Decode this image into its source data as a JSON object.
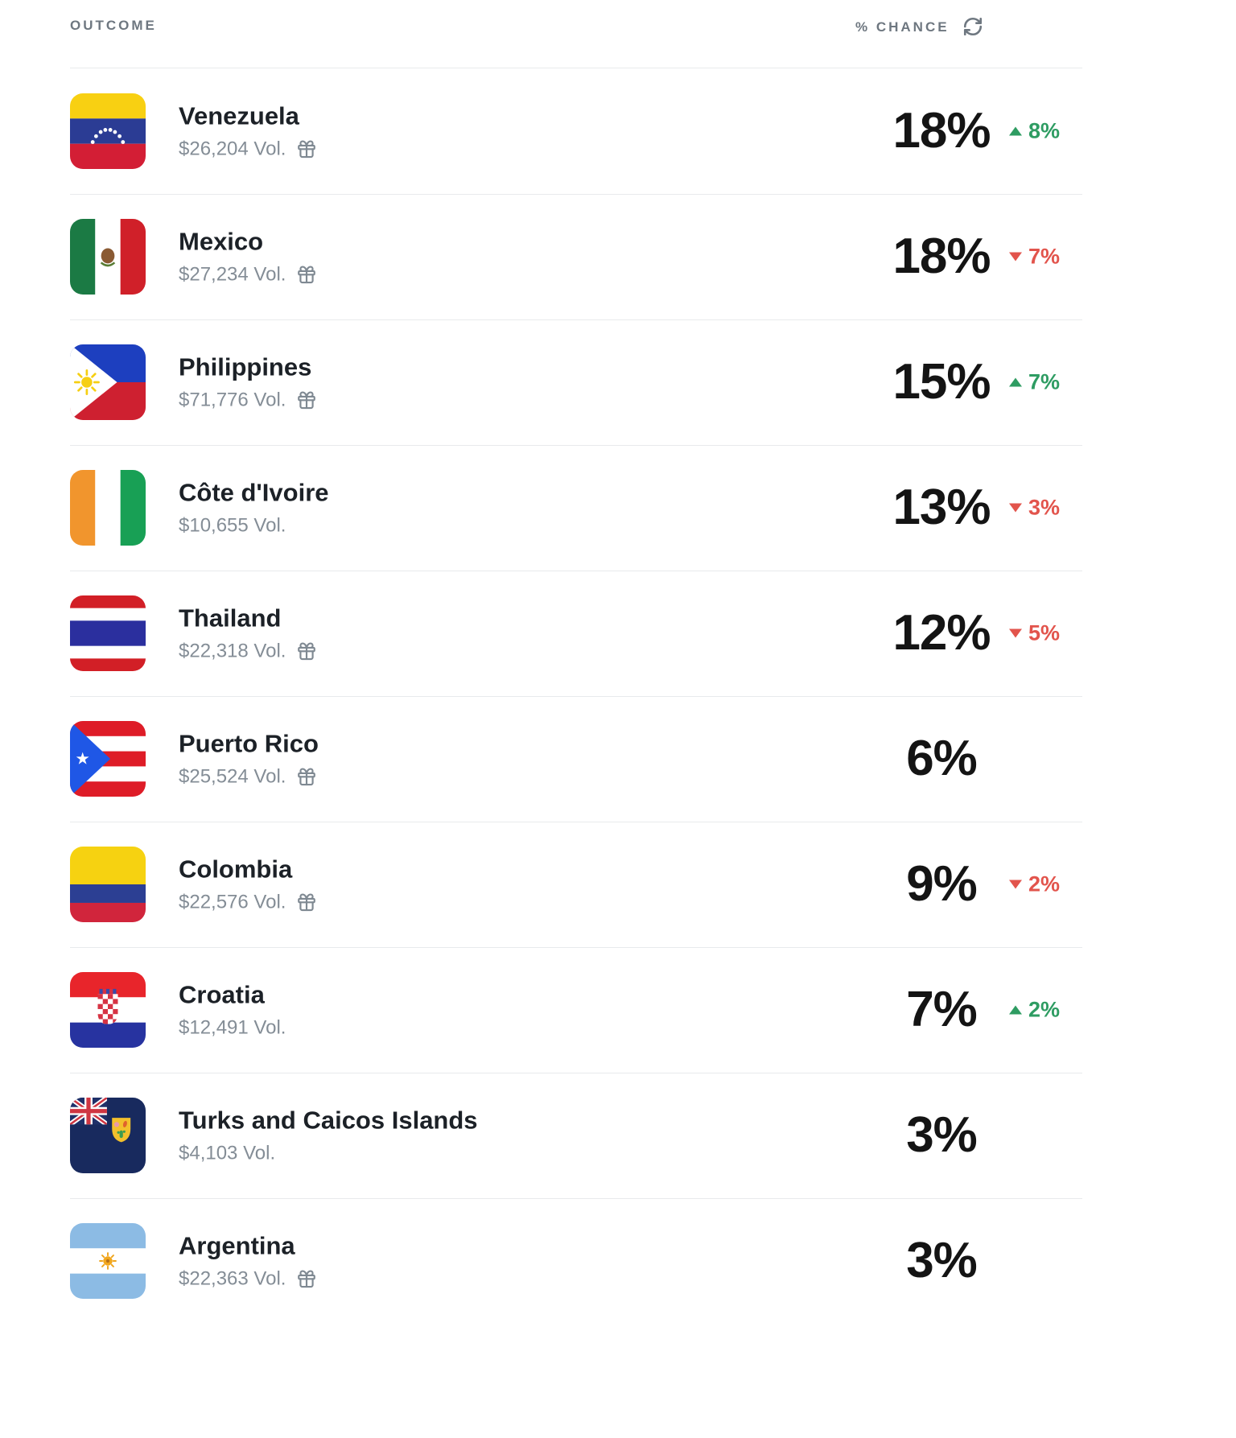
{
  "header": {
    "outcome_label": "OUTCOME",
    "chance_label": "% CHANCE"
  },
  "colors": {
    "up_green": "#2e9c62",
    "down_red": "#e2544c",
    "text_dark": "#1c2127",
    "text_muted": "#848d96",
    "header_gray": "#6e7780",
    "divider": "#e8eaec"
  },
  "outcomes": [
    {
      "name": "Venezuela",
      "volume": "$26,204 Vol.",
      "has_gift": true,
      "flag_icon": "venezuela-flag-icon",
      "chance": "18%",
      "delta": {
        "direction": "up",
        "value": "8%"
      }
    },
    {
      "name": "Mexico",
      "volume": "$27,234 Vol.",
      "has_gift": true,
      "flag_icon": "mexico-flag-icon",
      "chance": "18%",
      "delta": {
        "direction": "down",
        "value": "7%"
      }
    },
    {
      "name": "Philippines",
      "volume": "$71,776 Vol.",
      "has_gift": true,
      "flag_icon": "philippines-flag-icon",
      "chance": "15%",
      "delta": {
        "direction": "up",
        "value": "7%"
      }
    },
    {
      "name": "Côte d'Ivoire",
      "volume": "$10,655 Vol.",
      "has_gift": false,
      "flag_icon": "cote-divoire-flag-icon",
      "chance": "13%",
      "delta": {
        "direction": "down",
        "value": "3%"
      }
    },
    {
      "name": "Thailand",
      "volume": "$22,318 Vol.",
      "has_gift": true,
      "flag_icon": "thailand-flag-icon",
      "chance": "12%",
      "delta": {
        "direction": "down",
        "value": "5%"
      }
    },
    {
      "name": "Puerto Rico",
      "volume": "$25,524 Vol.",
      "has_gift": true,
      "flag_icon": "puerto-rico-flag-icon",
      "chance": "6%",
      "delta": null
    },
    {
      "name": "Colombia",
      "volume": "$22,576 Vol.",
      "has_gift": true,
      "flag_icon": "colombia-flag-icon",
      "chance": "9%",
      "delta": {
        "direction": "down",
        "value": "2%"
      }
    },
    {
      "name": "Croatia",
      "volume": "$12,491 Vol.",
      "has_gift": false,
      "flag_icon": "croatia-flag-icon",
      "chance": "7%",
      "delta": {
        "direction": "up",
        "value": "2%"
      }
    },
    {
      "name": "Turks and Caicos Islands",
      "volume": "$4,103 Vol.",
      "has_gift": false,
      "flag_icon": "turks-and-caicos-flag-icon",
      "chance": "3%",
      "delta": null
    },
    {
      "name": "Argentina",
      "volume": "$22,363 Vol.",
      "has_gift": true,
      "flag_icon": "argentina-flag-icon",
      "chance": "3%",
      "delta": null
    }
  ]
}
